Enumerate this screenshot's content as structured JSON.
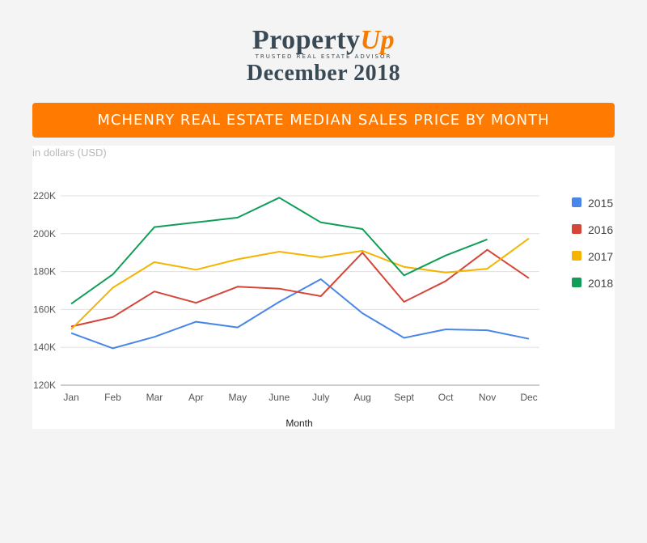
{
  "header": {
    "logo_main": "Property",
    "logo_accent": "Up",
    "tagline": "TRUSTED REAL ESTATE ADVISOR",
    "edition": "December 2018"
  },
  "banner": {
    "title": "MCHENRY REAL ESTATE MEDIAN SALES PRICE BY MONTH"
  },
  "colors": {
    "banner": "#ff7a00",
    "logo_text": "#3a4a55",
    "logo_accent": "#f57c00"
  },
  "chart_data": {
    "type": "line",
    "subtitle": "in dollars (USD)",
    "xlabel": "Month",
    "ylabel": "",
    "categories": [
      "Jan",
      "Feb",
      "Mar",
      "Apr",
      "May",
      "June",
      "July",
      "Aug",
      "Sept",
      "Oct",
      "Nov",
      "Dec"
    ],
    "ylim": [
      120000,
      220000
    ],
    "yticks": [
      {
        "value": 120000,
        "label": "120K"
      },
      {
        "value": 140000,
        "label": "140K"
      },
      {
        "value": 160000,
        "label": "160K"
      },
      {
        "value": 180000,
        "label": "180K"
      },
      {
        "value": 200000,
        "label": "200K"
      },
      {
        "value": 220000,
        "label": "220K"
      }
    ],
    "grid": true,
    "legend_position": "right",
    "series": [
      {
        "name": "2015",
        "color": "#4a86e8",
        "values": [
          147500,
          139500,
          145500,
          153500,
          150500,
          164000,
          176000,
          158000,
          145000,
          149500,
          149000,
          144500
        ]
      },
      {
        "name": "2016",
        "color": "#d44638",
        "values": [
          151000,
          156000,
          169500,
          163500,
          172000,
          171000,
          167000,
          190000,
          164000,
          175000,
          191500,
          176500
        ]
      },
      {
        "name": "2017",
        "color": "#f4b400",
        "values": [
          149500,
          171500,
          185000,
          181000,
          186500,
          190500,
          187500,
          191000,
          182500,
          179500,
          181500,
          197500
        ]
      },
      {
        "name": "2018",
        "color": "#0f9d58",
        "values": [
          163000,
          178500,
          203500,
          206000,
          208500,
          219000,
          206000,
          202500,
          178000,
          188500,
          197000,
          null
        ]
      }
    ]
  }
}
